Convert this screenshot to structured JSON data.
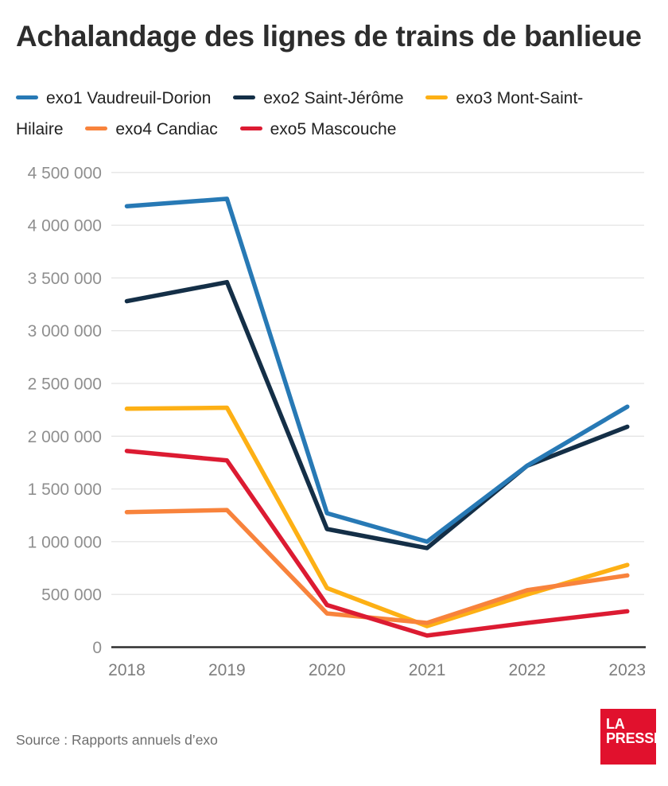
{
  "title": "Achalandage des lignes de trains de banlieue",
  "source_note": "Source : Rapports annuels d’exo",
  "logo": {
    "line1": "LA",
    "line2": "PRESSE",
    "color": "#e1112d"
  },
  "colors": {
    "grid": "#e4e4e4",
    "axis": "#2f2f2f",
    "y_tick_label": "#8f8f8f",
    "x_tick_label": "#7d7d7d",
    "legend_text": "#222222",
    "title_text": "#2d2d2d"
  },
  "chart_data": {
    "type": "line",
    "title": "Achalandage des lignes de trains de banlieue",
    "categories": [
      "2018",
      "2019",
      "2020",
      "2021",
      "2022",
      "2023"
    ],
    "series": [
      {
        "name": "exo1 Vaudreuil-Dorion",
        "color": "#2779b5",
        "values": [
          4180000,
          4250000,
          1270000,
          1000000,
          1720000,
          2280000
        ]
      },
      {
        "name": "exo2 Saint-Jérôme",
        "color": "#142f47",
        "values": [
          3280000,
          3460000,
          1120000,
          940000,
          1720000,
          2090000
        ]
      },
      {
        "name": "exo3 Mont-Saint-Hilaire",
        "color": "#fdb015",
        "values": [
          2260000,
          2270000,
          560000,
          200000,
          500000,
          780000
        ]
      },
      {
        "name": "exo4 Candiac",
        "color": "#f8833c",
        "values": [
          1280000,
          1300000,
          320000,
          230000,
          540000,
          680000
        ]
      },
      {
        "name": "exo5 Mascouche",
        "color": "#dc1b32",
        "values": [
          1860000,
          1770000,
          400000,
          110000,
          230000,
          340000
        ]
      }
    ],
    "ylim": [
      0,
      4500000
    ],
    "y_ticks": [
      {
        "value": 0,
        "label": "0"
      },
      {
        "value": 500000,
        "label": "500 000"
      },
      {
        "value": 1000000,
        "label": "1 000 000"
      },
      {
        "value": 1500000,
        "label": "1 500 000"
      },
      {
        "value": 2000000,
        "label": "2 000 000"
      },
      {
        "value": 2500000,
        "label": "2 500 000"
      },
      {
        "value": 3000000,
        "label": "3 000 000"
      },
      {
        "value": 3500000,
        "label": "3 500 000"
      },
      {
        "value": 4000000,
        "label": "4 000 000"
      },
      {
        "value": 4500000,
        "label": "4 500 000"
      }
    ],
    "xlabel": "",
    "ylabel": "",
    "grid": true,
    "legend_position": "top"
  }
}
